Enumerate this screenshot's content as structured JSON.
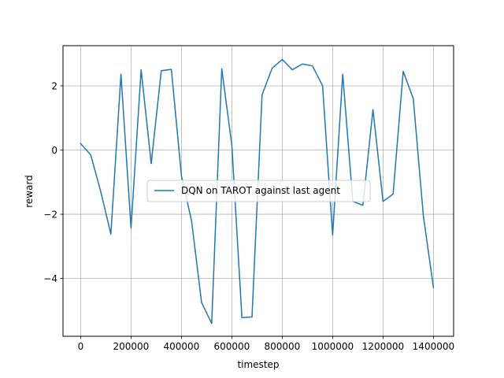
{
  "chart_data": {
    "type": "line",
    "title": "",
    "xlabel": "timestep",
    "ylabel": "reward",
    "xlim": [
      -70000,
      1480000
    ],
    "ylim": [
      -5.8,
      3.25
    ],
    "grid": true,
    "legend_position": "center",
    "x_ticks": [
      0,
      200000,
      400000,
      600000,
      800000,
      1000000,
      1200000,
      1400000
    ],
    "x_tick_labels": [
      "0",
      "200000",
      "400000",
      "600000",
      "800000",
      "1000000",
      "1200000",
      "1400000"
    ],
    "y_ticks": [
      -4,
      -2,
      0,
      2
    ],
    "y_tick_labels": [
      "−4",
      "−2",
      "0",
      "2"
    ],
    "series": [
      {
        "name": "DQN on TAROT against last agent",
        "color": "#1f77b4",
        "x": [
          0,
          40000,
          80000,
          120000,
          160000,
          200000,
          240000,
          280000,
          320000,
          360000,
          400000,
          440000,
          480000,
          520000,
          560000,
          600000,
          640000,
          680000,
          720000,
          760000,
          800000,
          840000,
          880000,
          920000,
          960000,
          1000000,
          1040000,
          1080000,
          1120000,
          1160000,
          1200000,
          1240000,
          1280000,
          1320000,
          1360000,
          1400000
        ],
        "y": [
          0.2,
          -0.15,
          -1.3,
          -2.62,
          2.36,
          -2.43,
          2.5,
          -0.42,
          2.47,
          2.51,
          -0.8,
          -2.2,
          -4.75,
          -5.4,
          2.53,
          0.15,
          -5.22,
          -5.2,
          1.72,
          2.55,
          2.82,
          2.5,
          2.68,
          2.62,
          2.0,
          -2.65,
          2.36,
          -1.6,
          -1.72,
          1.26,
          -1.6,
          -1.37,
          2.45,
          1.6,
          -2.05,
          -4.28
        ]
      }
    ]
  }
}
